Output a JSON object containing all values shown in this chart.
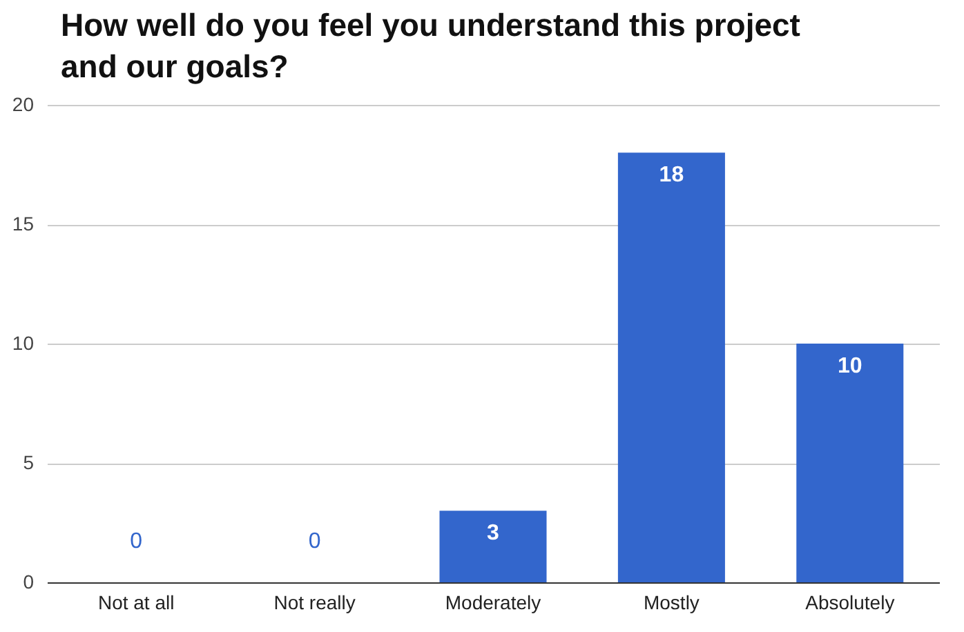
{
  "chart_data": {
    "type": "bar",
    "title": "How well do you feel you understand this project and our goals?",
    "categories": [
      "Not at all",
      "Not really",
      "Moderately",
      "Mostly",
      "Absolutely"
    ],
    "values": [
      0,
      0,
      3,
      18,
      10
    ],
    "color": "#3366cc",
    "ylim": [
      0,
      20
    ],
    "yticks": [
      0,
      5,
      10,
      15,
      20
    ],
    "grid": "y",
    "data_labels": true
  }
}
